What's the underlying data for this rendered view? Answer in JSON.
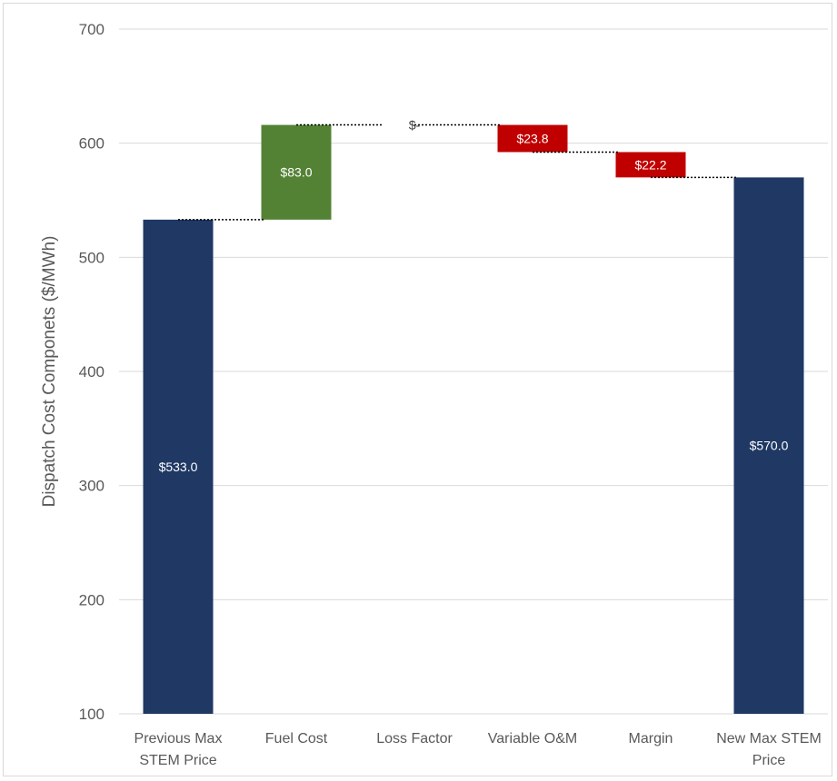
{
  "chart_data": {
    "type": "bar",
    "subtype": "waterfall",
    "title": "",
    "xlabel": "",
    "ylabel": "Dispatch Cost Componets  ($/MWh)",
    "ylim": [
      100,
      700
    ],
    "yticks": [
      100,
      200,
      300,
      400,
      500,
      600,
      700
    ],
    "grid": true,
    "legend": "none",
    "categories": [
      [
        "Previous Max",
        "STEM Price"
      ],
      [
        "Fuel Cost"
      ],
      [
        "Loss Factor"
      ],
      [
        "Variable O&M"
      ],
      [
        "Margin"
      ],
      [
        "New Max STEM",
        "Price"
      ]
    ],
    "steps": [
      {
        "kind": "total",
        "start": 100,
        "end": 533.0,
        "label": "$533.0",
        "color": "#1f3864"
      },
      {
        "kind": "increase",
        "start": 533.0,
        "end": 616.0,
        "label": "$83.0",
        "color": "#548235"
      },
      {
        "kind": "change",
        "start": 616.0,
        "end": 616.0,
        "label": "$-",
        "color": "#c00000"
      },
      {
        "kind": "decrease",
        "start": 616.0,
        "end": 592.2,
        "label": "$23.8",
        "color": "#c00000"
      },
      {
        "kind": "decrease",
        "start": 592.2,
        "end": 570.0,
        "label": "$22.2",
        "color": "#c00000"
      },
      {
        "kind": "total",
        "start": 100,
        "end": 570.0,
        "label": "$570.0",
        "color": "#1f3864"
      }
    ]
  }
}
